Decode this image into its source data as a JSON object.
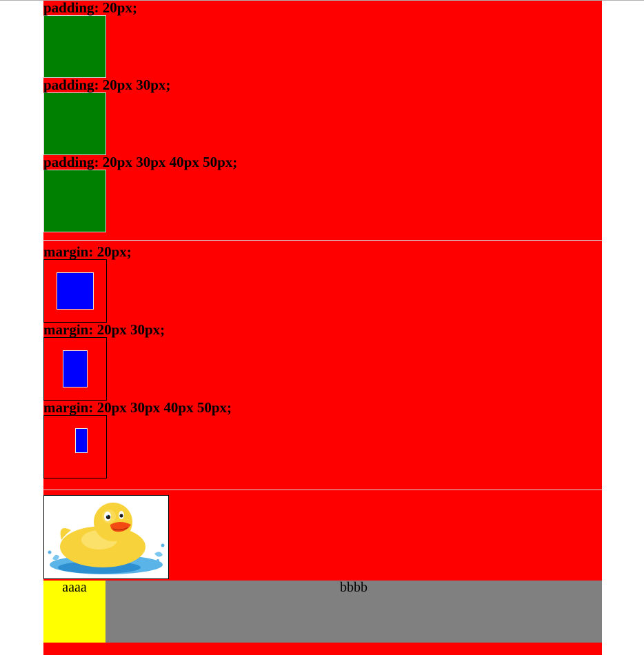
{
  "padding_section": {
    "items": [
      {
        "label": "padding: 20px;"
      },
      {
        "label": "padding: 20px 30px;"
      },
      {
        "label": "padding: 20px 30px 40px 50px;"
      }
    ]
  },
  "margin_section": {
    "items": [
      {
        "label": "margin: 20px;"
      },
      {
        "label": "margin: 20px 30px;"
      },
      {
        "label": "margin: 20px 30px 40px 50px;"
      }
    ]
  },
  "image_row": {
    "image_subject": "rubber-duck"
  },
  "bottom_row": {
    "cell_a": "aaaa",
    "cell_b": "bbbb"
  },
  "colors": {
    "page_bg": "#ff0000",
    "padding_box": "#008000",
    "margin_inner": "#0000ff",
    "cell_a_bg": "#ffff00",
    "cell_b_bg": "#808080"
  }
}
